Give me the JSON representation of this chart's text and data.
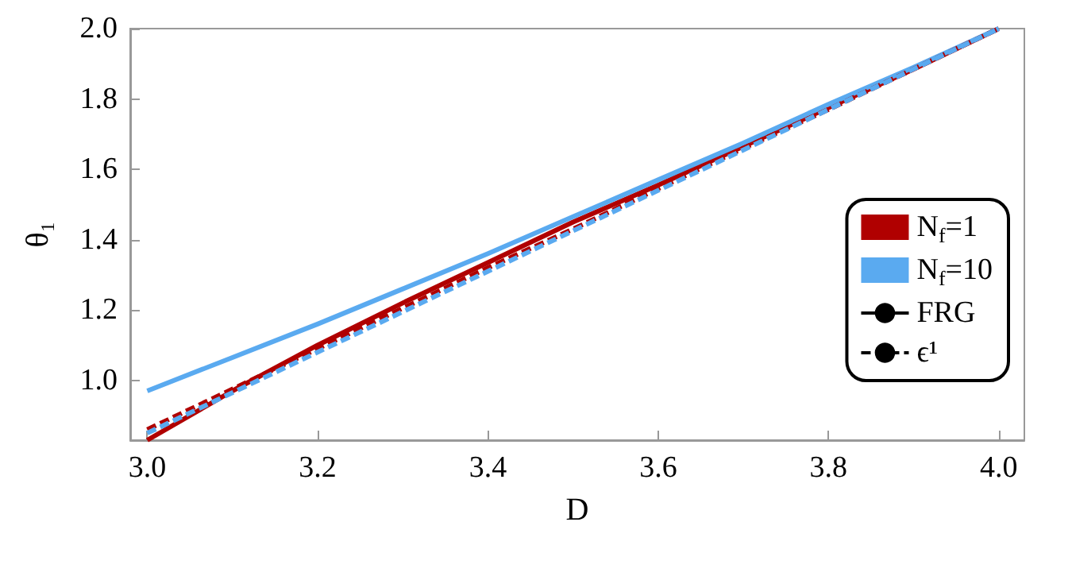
{
  "chart_data": {
    "type": "line",
    "xlabel": "D",
    "ylabel": "θ₁",
    "x": [
      3.0,
      3.1,
      3.2,
      3.3,
      3.4,
      3.5,
      3.6,
      3.7,
      3.8,
      3.9,
      4.0
    ],
    "series": [
      {
        "name": "N$_{f}$=1",
        "color": "#b00000",
        "line_style": "solid",
        "values": [
          0.83,
          0.97,
          1.1,
          1.22,
          1.335,
          1.45,
          1.555,
          1.665,
          1.775,
          1.885,
          2.0
        ]
      },
      {
        "name": "N$_{f}$=10",
        "color": "#5aaaf0",
        "line_style": "solid",
        "values": [
          0.97,
          1.065,
          1.16,
          1.26,
          1.36,
          1.465,
          1.57,
          1.675,
          1.785,
          1.89,
          2.0
        ]
      },
      {
        "color": "#b00000",
        "line_style": "dashed",
        "values": [
          0.86,
          0.975,
          1.09,
          1.205,
          1.32,
          1.43,
          1.545,
          1.66,
          1.77,
          1.885,
          2.0
        ]
      },
      {
        "color": "#5aaaf0",
        "line_style": "dashed",
        "values": [
          0.85,
          0.965,
          1.08,
          1.195,
          1.31,
          1.425,
          1.54,
          1.655,
          1.77,
          1.885,
          2.0
        ]
      },
      {
        "name": "FRG",
        "color": "#000000",
        "line_style": "solid",
        "values": [
          null,
          null,
          null,
          null,
          null,
          null,
          null,
          null,
          null,
          null,
          null
        ]
      },
      {
        "name": "ϵ¹",
        "color": "#000000",
        "line_style": "dashed",
        "values": [
          null,
          null,
          null,
          null,
          null,
          null,
          null,
          null,
          null,
          null,
          null
        ]
      }
    ],
    "xlim": [
      2.98,
      4.03
    ],
    "xticks": [
      {
        "value": 3.0,
        "label": "3.0"
      },
      {
        "value": 3.2,
        "label": "3.2"
      },
      {
        "value": 3.4,
        "label": "3.4"
      },
      {
        "value": 3.6,
        "label": "3.6"
      },
      {
        "value": 3.8,
        "label": "3.8"
      },
      {
        "value": 4.0,
        "label": "4.0"
      }
    ],
    "ylim": [
      0.83,
      2.0
    ],
    "yticks": [
      {
        "value": 1.0,
        "label": "1.0"
      },
      {
        "value": 1.2,
        "label": "1.2"
      },
      {
        "value": 1.4,
        "label": "1.4"
      },
      {
        "value": 1.6,
        "label": "1.6"
      },
      {
        "value": 1.8,
        "label": "1.8"
      },
      {
        "value": 2.0,
        "label": "2.0"
      }
    ],
    "grid": false,
    "legend": "right",
    "marker": "none"
  }
}
